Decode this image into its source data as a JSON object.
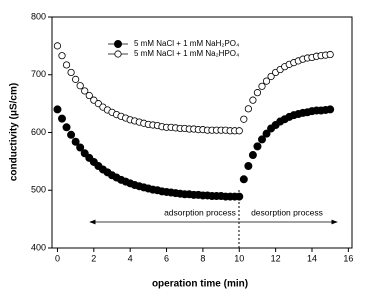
{
  "chart_data": {
    "type": "scatter",
    "xlabel": "operation time (min)",
    "ylabel": "conductivity (μS/cm)",
    "xlim": [
      -0.3,
      16.2
    ],
    "ylim": [
      400,
      800
    ],
    "xticks": [
      0,
      2,
      4,
      6,
      8,
      10,
      12,
      14,
      16
    ],
    "yticks": [
      400,
      500,
      600,
      700,
      800
    ],
    "annotations": [
      "adsorption process",
      "desorption process"
    ],
    "x": [
      0,
      0.25,
      0.5,
      0.75,
      1,
      1.25,
      1.5,
      1.75,
      2,
      2.25,
      2.5,
      2.75,
      3,
      3.25,
      3.5,
      3.75,
      4,
      4.25,
      4.5,
      4.75,
      5,
      5.25,
      5.5,
      5.75,
      6,
      6.25,
      6.5,
      6.75,
      7,
      7.25,
      7.5,
      7.75,
      8,
      8.25,
      8.5,
      8.75,
      9,
      9.25,
      9.5,
      9.75,
      10,
      10.25,
      10.5,
      10.75,
      11,
      11.25,
      11.5,
      11.75,
      12,
      12.25,
      12.5,
      12.75,
      13,
      13.25,
      13.5,
      13.75,
      14,
      14.25,
      14.5,
      14.75,
      15
    ],
    "series": [
      {
        "name": "5 mM NaCl + 1 mM NaH₂PO₄",
        "color": "#000000",
        "marker": "filled",
        "values": [
          640,
          624,
          609,
          596,
          584,
          574,
          564,
          556,
          549,
          542,
          536,
          531,
          526,
          522,
          518,
          515,
          512,
          509,
          507,
          505,
          503,
          501,
          500,
          498,
          497,
          496,
          495,
          494,
          493,
          493,
          492,
          492,
          491,
          491,
          490,
          490,
          490,
          489,
          489,
          489,
          489,
          519,
          542,
          561,
          576,
          588,
          598,
          607,
          613,
          619,
          623,
          627,
          630,
          632,
          634,
          635,
          637,
          638,
          638,
          639,
          640
        ]
      },
      {
        "name": "5 mM NaCl + 1 mM Na₂HPO₄",
        "color": "#000000",
        "marker": "open",
        "values": [
          750,
          733,
          717,
          704,
          692,
          681,
          672,
          664,
          656,
          650,
          644,
          639,
          635,
          631,
          628,
          625,
          622,
          620,
          618,
          616,
          614,
          613,
          612,
          610,
          609,
          609,
          608,
          607,
          607,
          606,
          606,
          605,
          605,
          604,
          604,
          604,
          604,
          604,
          603,
          603,
          603,
          623,
          641,
          656,
          669,
          680,
          689,
          697,
          704,
          709,
          714,
          718,
          721,
          724,
          727,
          729,
          730,
          732,
          733,
          734,
          735
        ]
      }
    ]
  }
}
